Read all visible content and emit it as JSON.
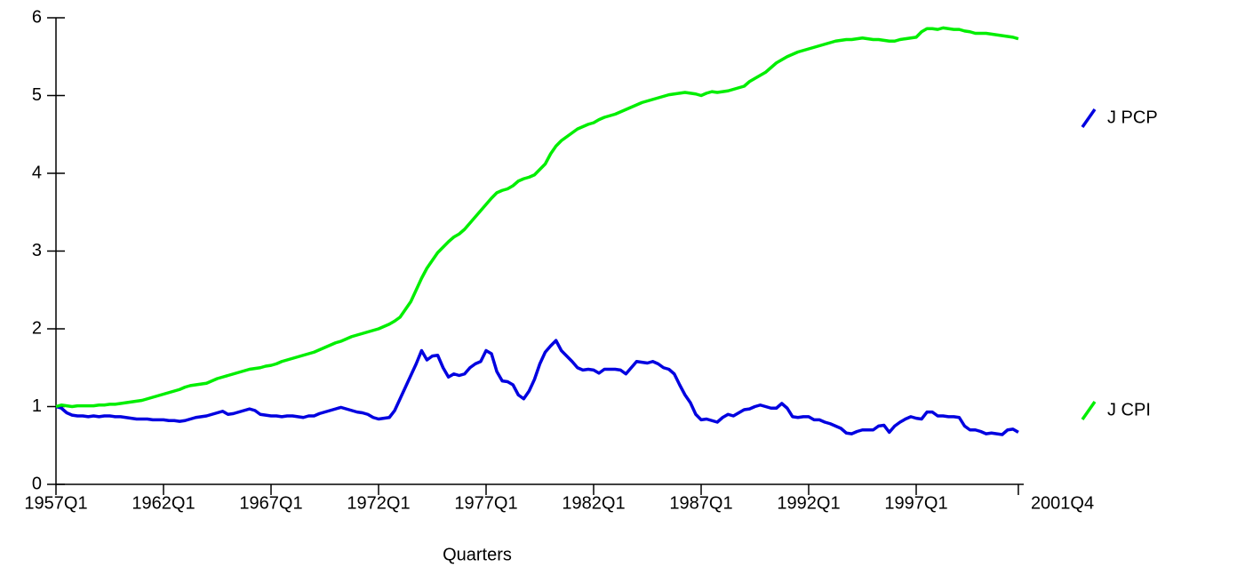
{
  "chart_data": {
    "type": "line",
    "xlabel": "Quarters",
    "categories": [
      "1957Q1",
      null,
      null,
      null,
      null,
      null,
      null,
      null,
      null,
      null,
      null,
      null,
      null,
      null,
      null,
      null,
      null,
      null,
      null,
      null,
      "1962Q1",
      null,
      null,
      null,
      null,
      null,
      null,
      null,
      null,
      null,
      null,
      null,
      null,
      null,
      null,
      null,
      null,
      null,
      null,
      null,
      "1967Q1",
      null,
      null,
      null,
      null,
      null,
      null,
      null,
      null,
      null,
      null,
      null,
      null,
      null,
      null,
      null,
      null,
      null,
      null,
      null,
      "1972Q1",
      null,
      null,
      null,
      null,
      null,
      null,
      null,
      null,
      null,
      null,
      null,
      null,
      null,
      null,
      null,
      null,
      null,
      null,
      null,
      "1977Q1",
      null,
      null,
      null,
      null,
      null,
      null,
      null,
      null,
      null,
      null,
      null,
      null,
      null,
      null,
      null,
      null,
      null,
      null,
      null,
      "1982Q1",
      null,
      null,
      null,
      null,
      null,
      null,
      null,
      null,
      null,
      null,
      null,
      null,
      null,
      null,
      null,
      null,
      null,
      null,
      null,
      "1987Q1",
      null,
      null,
      null,
      null,
      null,
      null,
      null,
      null,
      null,
      null,
      null,
      null,
      null,
      null,
      null,
      null,
      null,
      null,
      null,
      "1992Q1",
      null,
      null,
      null,
      null,
      null,
      null,
      null,
      null,
      null,
      null,
      null,
      null,
      null,
      null,
      null,
      null,
      null,
      null,
      null,
      "1997Q1",
      null,
      null,
      null,
      null,
      null,
      null,
      null,
      null,
      null,
      null,
      null,
      null,
      null,
      null,
      null,
      null,
      null,
      null,
      "2001Q4"
    ],
    "series": [
      {
        "name": "J PCP",
        "color": "#0000e0",
        "values": [
          1.0,
          0.98,
          0.92,
          0.89,
          0.88,
          0.88,
          0.87,
          0.88,
          0.87,
          0.88,
          0.88,
          0.87,
          0.87,
          0.86,
          0.85,
          0.84,
          0.84,
          0.84,
          0.83,
          0.83,
          0.83,
          0.82,
          0.82,
          0.81,
          0.82,
          0.84,
          0.86,
          0.87,
          0.88,
          0.9,
          0.92,
          0.94,
          0.9,
          0.91,
          0.93,
          0.95,
          0.97,
          0.95,
          0.9,
          0.89,
          0.88,
          0.88,
          0.87,
          0.88,
          0.88,
          0.87,
          0.86,
          0.88,
          0.88,
          0.91,
          0.93,
          0.95,
          0.97,
          0.99,
          0.97,
          0.95,
          0.93,
          0.92,
          0.9,
          0.86,
          0.84,
          0.85,
          0.86,
          0.95,
          1.1,
          1.25,
          1.4,
          1.55,
          1.72,
          1.6,
          1.65,
          1.66,
          1.5,
          1.38,
          1.42,
          1.4,
          1.42,
          1.5,
          1.55,
          1.58,
          1.72,
          1.68,
          1.45,
          1.33,
          1.32,
          1.28,
          1.15,
          1.1,
          1.2,
          1.35,
          1.55,
          1.7,
          1.78,
          1.85,
          1.72,
          1.65,
          1.58,
          1.5,
          1.47,
          1.48,
          1.47,
          1.43,
          1.48,
          1.48,
          1.48,
          1.47,
          1.42,
          1.5,
          1.58,
          1.57,
          1.56,
          1.58,
          1.55,
          1.5,
          1.48,
          1.42,
          1.28,
          1.15,
          1.05,
          0.9,
          0.83,
          0.84,
          0.82,
          0.8,
          0.86,
          0.9,
          0.88,
          0.92,
          0.96,
          0.97,
          1.0,
          1.02,
          1.0,
          0.98,
          0.98,
          1.04,
          0.98,
          0.87,
          0.86,
          0.87,
          0.87,
          0.83,
          0.83,
          0.8,
          0.78,
          0.75,
          0.72,
          0.66,
          0.65,
          0.68,
          0.7,
          0.7,
          0.7,
          0.75,
          0.76,
          0.67,
          0.75,
          0.8,
          0.84,
          0.87,
          0.85,
          0.84,
          0.93,
          0.93,
          0.88,
          0.88,
          0.87,
          0.87,
          0.86,
          0.75,
          0.7,
          0.7,
          0.68,
          0.65,
          0.66,
          0.65,
          0.64,
          0.7,
          0.71,
          0.67
        ]
      },
      {
        "name": "J CPI",
        "color": "#00ee00",
        "values": [
          1.0,
          1.02,
          1.01,
          1.0,
          1.01,
          1.01,
          1.01,
          1.01,
          1.02,
          1.02,
          1.03,
          1.03,
          1.04,
          1.05,
          1.06,
          1.07,
          1.08,
          1.1,
          1.12,
          1.14,
          1.16,
          1.18,
          1.2,
          1.22,
          1.25,
          1.27,
          1.28,
          1.29,
          1.3,
          1.33,
          1.36,
          1.38,
          1.4,
          1.42,
          1.44,
          1.46,
          1.48,
          1.49,
          1.5,
          1.52,
          1.53,
          1.55,
          1.58,
          1.6,
          1.62,
          1.64,
          1.66,
          1.68,
          1.7,
          1.73,
          1.76,
          1.79,
          1.82,
          1.84,
          1.87,
          1.9,
          1.92,
          1.94,
          1.96,
          1.98,
          2.0,
          2.03,
          2.06,
          2.1,
          2.15,
          2.25,
          2.35,
          2.5,
          2.65,
          2.78,
          2.88,
          2.98,
          3.05,
          3.12,
          3.18,
          3.22,
          3.28,
          3.36,
          3.44,
          3.52,
          3.6,
          3.68,
          3.75,
          3.78,
          3.8,
          3.84,
          3.9,
          3.93,
          3.95,
          3.98,
          4.05,
          4.12,
          4.25,
          4.35,
          4.42,
          4.47,
          4.52,
          4.57,
          4.6,
          4.63,
          4.65,
          4.69,
          4.72,
          4.74,
          4.76,
          4.79,
          4.82,
          4.85,
          4.88,
          4.91,
          4.93,
          4.95,
          4.97,
          4.99,
          5.01,
          5.02,
          5.03,
          5.04,
          5.03,
          5.02,
          5.0,
          5.03,
          5.05,
          5.04,
          5.05,
          5.06,
          5.08,
          5.1,
          5.12,
          5.18,
          5.22,
          5.26,
          5.3,
          5.36,
          5.42,
          5.46,
          5.5,
          5.53,
          5.56,
          5.58,
          5.6,
          5.62,
          5.64,
          5.66,
          5.68,
          5.7,
          5.71,
          5.72,
          5.72,
          5.73,
          5.74,
          5.73,
          5.72,
          5.72,
          5.71,
          5.7,
          5.7,
          5.72,
          5.73,
          5.74,
          5.75,
          5.82,
          5.86,
          5.86,
          5.85,
          5.87,
          5.86,
          5.85,
          5.85,
          5.83,
          5.82,
          5.8,
          5.8,
          5.8,
          5.79,
          5.78,
          5.77,
          5.76,
          5.75,
          5.73
        ]
      }
    ],
    "ylim": [
      0,
      6
    ],
    "yticks": [
      0,
      1,
      2,
      3,
      4,
      5,
      6
    ],
    "grid": false
  }
}
